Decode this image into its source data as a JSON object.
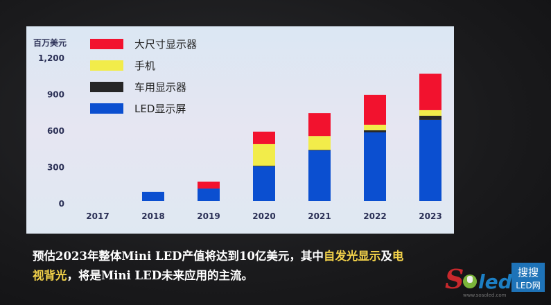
{
  "chart_data": {
    "type": "bar",
    "stacked": true,
    "ylabel": "百万美元",
    "ylim": [
      0,
      1200
    ],
    "yticks": [
      "0",
      "300",
      "600",
      "900",
      "1,200"
    ],
    "ytick_values": [
      0,
      300,
      600,
      900,
      1200
    ],
    "categories": [
      "2017",
      "2018",
      "2019",
      "2020",
      "2021",
      "2022",
      "2023"
    ],
    "legend_position": "top-left",
    "series": [
      {
        "name": "LED显示屏",
        "color": "#0b4fd0",
        "values": [
          0,
          75,
          103,
          286,
          417,
          566,
          669
        ]
      },
      {
        "name": "车用显示器",
        "color": "#262626",
        "values": [
          0,
          0,
          0,
          5,
          5,
          17,
          34
        ]
      },
      {
        "name": "手机",
        "color": "#f2ec4a",
        "values": [
          0,
          0,
          0,
          178,
          114,
          46,
          46
        ]
      },
      {
        "name": "大尺寸显示器",
        "color": "#f2122e",
        "values": [
          0,
          0,
          57,
          103,
          189,
          246,
          300
        ]
      }
    ],
    "legend_order": [
      3,
      2,
      1,
      0
    ]
  },
  "caption": {
    "line1_a": "预估2023年整体Mini LED产值将达到10亿美元，其中",
    "line1_hl1": "自发光显示",
    "line1_b": "及",
    "line1_hl2": "电",
    "line2_hl": "视背光",
    "line2_b": "，将是Mini LED未来应用的主流。"
  },
  "watermark": {
    "brand": "Soled",
    "badge_top": "搜搜",
    "badge_bottom": "LED网",
    "url": "www.sosoled.com"
  }
}
